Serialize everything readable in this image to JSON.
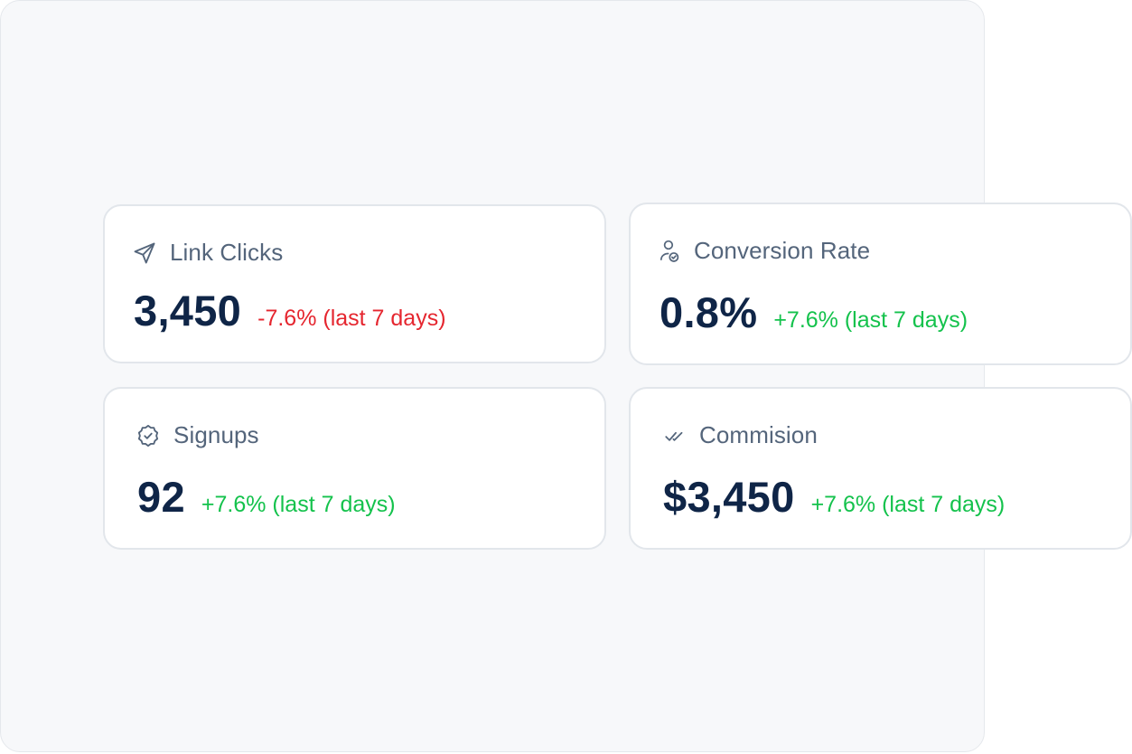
{
  "colors": {
    "background": "#f7f8fa",
    "card": "#ffffff",
    "label": "#54657b",
    "value": "#0f2547",
    "negative": "#e5262f",
    "positive": "#14c24c"
  },
  "cards": [
    {
      "icon": "send-icon",
      "label": "Link Clicks",
      "value": "3,450",
      "delta": "-7.6% (last 7 days)",
      "trend": "negative"
    },
    {
      "icon": "user-check-icon",
      "label": "Conversion Rate",
      "value": "0.8%",
      "delta": "+7.6% (last 7 days)",
      "trend": "positive"
    },
    {
      "icon": "verified-badge-icon",
      "label": "Signups",
      "value": "92",
      "delta": "+7.6% (last 7 days)",
      "trend": "positive"
    },
    {
      "icon": "double-check-icon",
      "label": "Commision",
      "value": "$3,450",
      "delta": "+7.6% (last 7 days)",
      "trend": "positive"
    }
  ]
}
